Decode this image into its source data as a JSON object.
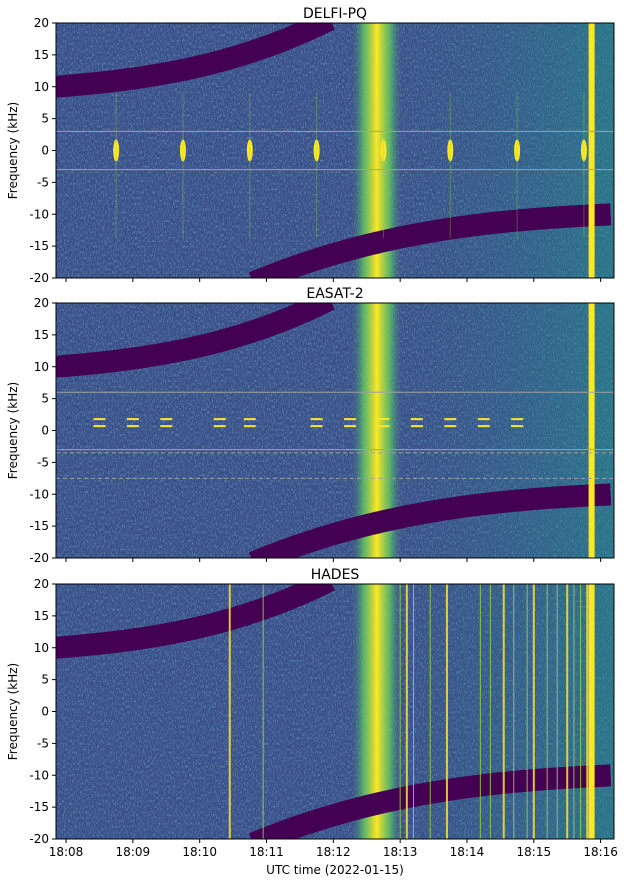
{
  "figure": {
    "xlabel": "UTC time (2022-01-15)",
    "colors": {
      "background": "#3b4f8a",
      "noise_hi": "#2a8f8a",
      "band": "#440154",
      "band_dark": "#3a0a4f",
      "bright": "#fde725",
      "greenish": "#9fd63a",
      "marker_line": "#a0a0a0"
    }
  },
  "chart_data": [
    {
      "type": "heatmap",
      "title": "DELFI-PQ",
      "ylabel": "Frequency (kHz)",
      "ylim": [
        -20,
        20
      ],
      "yticks": [
        20,
        15,
        10,
        5,
        0,
        -5,
        -10,
        -15,
        -20
      ],
      "xticks": [
        "18:08",
        "18:09",
        "18:10",
        "18:11",
        "18:12",
        "18:13",
        "18:14",
        "18:15",
        "18:16"
      ],
      "x_range_minutes": [
        7.85,
        16.2
      ],
      "marker_lines_khz": [
        3,
        -3
      ],
      "marker_style": "solid",
      "bursts_minutes": [
        8.75,
        9.75,
        10.75,
        11.75,
        12.75,
        13.75,
        14.75,
        15.75
      ],
      "burst_freq_khz": 0
    },
    {
      "type": "heatmap",
      "title": "EASAT-2",
      "ylabel": "Frequency (kHz)",
      "ylim": [
        -20,
        20
      ],
      "yticks": [
        20,
        15,
        10,
        5,
        0,
        -5,
        -10,
        -15,
        -20
      ],
      "xticks": [
        "18:08",
        "18:09",
        "18:10",
        "18:11",
        "18:12",
        "18:13",
        "18:14",
        "18:15",
        "18:16"
      ],
      "x_range_minutes": [
        7.85,
        16.2
      ],
      "marker_lines_khz": [
        6,
        -3
      ],
      "dashed_lines_khz": [
        -3.5,
        -7.5
      ],
      "marker_style": "solid",
      "bursts_minutes": [
        8.5,
        9.0,
        9.5,
        10.3,
        10.75,
        11.75,
        12.25,
        12.75,
        13.25,
        13.75,
        14.25,
        14.75
      ],
      "burst_freq_khz": 1
    },
    {
      "type": "heatmap",
      "title": "HADES",
      "ylabel": "Frequency (kHz)",
      "ylim": [
        -20,
        20
      ],
      "yticks": [
        20,
        15,
        10,
        5,
        0,
        -5,
        -10,
        -15,
        -20
      ],
      "xticks": [
        "18:08",
        "18:09",
        "18:10",
        "18:11",
        "18:12",
        "18:13",
        "18:14",
        "18:15",
        "18:16"
      ],
      "x_range_minutes": [
        7.85,
        16.2
      ],
      "marker_lines_khz": [],
      "bursts_minutes": [],
      "vertical_lines_minutes": [
        10.45,
        10.95,
        13.0,
        13.1,
        13.2,
        13.45,
        13.7,
        14.2,
        14.35,
        14.55,
        14.7,
        14.9,
        15.0,
        15.2,
        15.35,
        15.5,
        15.6,
        15.7,
        15.8
      ]
    }
  ]
}
